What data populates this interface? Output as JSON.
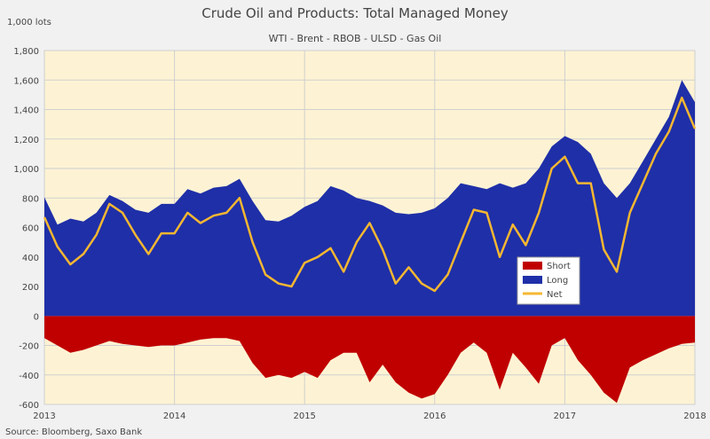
{
  "chart_data": {
    "type": "area",
    "title": "Crude Oil and Products: Total Managed Money",
    "subtitle": "WTI - Brent - RBOB - ULSD - Gas Oil",
    "ylabel": "1,000 lots",
    "source": "Source: Bloomberg, Saxo Bank",
    "ylim": [
      -600,
      1800
    ],
    "xlim": [
      2013,
      2018
    ],
    "yticks": [
      -600,
      -400,
      -200,
      0,
      200,
      400,
      600,
      800,
      1000,
      1200,
      1400,
      1600,
      1800
    ],
    "ytick_labels": [
      "-600",
      "-400",
      "-200",
      "0",
      "200",
      "400",
      "600",
      "800",
      "1,000",
      "1,200",
      "1,400",
      "1,600",
      "1,800"
    ],
    "xticks": [
      2013,
      2014,
      2015,
      2016,
      2017,
      2018
    ],
    "xtick_labels": [
      "2013",
      "2014",
      "2015",
      "2016",
      "2017",
      "2018"
    ],
    "grid": true,
    "legend": "center-right",
    "x": [
      2013.0,
      2013.1,
      2013.2,
      2013.3,
      2013.4,
      2013.5,
      2013.6,
      2013.7,
      2013.8,
      2013.9,
      2014.0,
      2014.1,
      2014.2,
      2014.3,
      2014.4,
      2014.5,
      2014.6,
      2014.7,
      2014.8,
      2014.9,
      2015.0,
      2015.1,
      2015.2,
      2015.3,
      2015.4,
      2015.5,
      2015.6,
      2015.7,
      2015.8,
      2015.9,
      2016.0,
      2016.1,
      2016.2,
      2016.3,
      2016.4,
      2016.5,
      2016.6,
      2016.7,
      2016.8,
      2016.9,
      2017.0,
      2017.1,
      2017.2,
      2017.3,
      2017.4,
      2017.5,
      2017.6,
      2017.7,
      2017.8,
      2017.9,
      2018.0
    ],
    "series": [
      {
        "name": "Short",
        "color": "#c00000",
        "type": "area",
        "values": [
          -150,
          -200,
          -250,
          -230,
          -200,
          -170,
          -190,
          -200,
          -210,
          -200,
          -200,
          -180,
          -160,
          -150,
          -150,
          -170,
          -320,
          -420,
          -400,
          -420,
          -380,
          -420,
          -300,
          -250,
          -250,
          -450,
          -330,
          -450,
          -520,
          -560,
          -530,
          -400,
          -250,
          -180,
          -250,
          -500,
          -250,
          -350,
          -460,
          -200,
          -150,
          -300,
          -400,
          -520,
          -590,
          -350,
          -300,
          -260,
          -220,
          -190,
          -180
        ]
      },
      {
        "name": "Long",
        "color": "#1f2fa8",
        "type": "area",
        "values": [
          805,
          620,
          660,
          640,
          700,
          820,
          780,
          720,
          700,
          760,
          760,
          860,
          830,
          870,
          880,
          930,
          780,
          650,
          640,
          680,
          740,
          780,
          880,
          850,
          800,
          780,
          750,
          700,
          690,
          700,
          730,
          800,
          900,
          880,
          860,
          900,
          870,
          900,
          1000,
          1150,
          1220,
          1180,
          1100,
          900,
          800,
          900,
          1050,
          1200,
          1350,
          1600,
          1450
        ]
      },
      {
        "name": "Net",
        "color": "#f5b731",
        "type": "line",
        "values": [
          670,
          470,
          350,
          420,
          550,
          760,
          700,
          550,
          420,
          560,
          560,
          700,
          630,
          680,
          700,
          800,
          500,
          280,
          220,
          200,
          360,
          400,
          460,
          300,
          500,
          630,
          450,
          220,
          330,
          220,
          170,
          280,
          500,
          720,
          700,
          400,
          620,
          480,
          700,
          1000,
          1080,
          900,
          900,
          450,
          300,
          700,
          900,
          1100,
          1250,
          1480,
          1270
        ]
      }
    ]
  }
}
